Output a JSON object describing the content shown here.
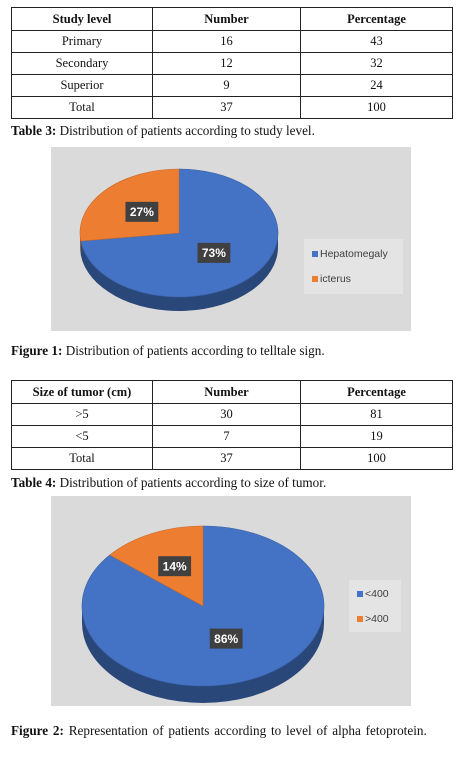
{
  "table3": {
    "headers": [
      "Study level",
      "Number",
      "Percentage"
    ],
    "rows": [
      [
        "Primary",
        "16",
        "43"
      ],
      [
        "Secondary",
        "12",
        "32"
      ],
      [
        "Superior",
        "9",
        "24"
      ],
      [
        "Total",
        "37",
        "100"
      ]
    ],
    "caption_label": "Table 3:",
    "caption_text": " Distribution of patients according to study level."
  },
  "figure1": {
    "caption_label": "Figure 1:",
    "caption_text": " Distribution of patients according to telltale sign."
  },
  "table4": {
    "headers": [
      "Size of tumor (cm)",
      "Number",
      "Percentage"
    ],
    "rows": [
      [
        ">5",
        "30",
        "81"
      ],
      [
        "<5",
        "7",
        "19"
      ],
      [
        "Total",
        "37",
        "100"
      ]
    ],
    "caption_label": "Table 4:",
    "caption_text": " Distribution of patients according to size of tumor."
  },
  "figure2": {
    "caption_label": "Figure 2:",
    "caption_text": " Representation of patients according to level of alpha fetoprotein."
  },
  "chart_data": [
    {
      "type": "pie",
      "categories": [
        "Hepatomegaly",
        "icterus"
      ],
      "values": [
        73,
        27
      ],
      "labels": [
        "73%",
        "27%"
      ],
      "colors": [
        "#4472C4",
        "#ED7D31"
      ],
      "legend_position": "right"
    },
    {
      "type": "pie",
      "categories": [
        "<400",
        ">400"
      ],
      "values": [
        86,
        14
      ],
      "labels": [
        "86%",
        "14%"
      ],
      "colors": [
        "#4472C4",
        "#ED7D31"
      ],
      "legend_position": "right"
    }
  ],
  "colors": {
    "blue": "#4472C4",
    "orange": "#ED7D31",
    "chart_bg": "#DADADA",
    "legend_bg": "#E4E4E4"
  }
}
